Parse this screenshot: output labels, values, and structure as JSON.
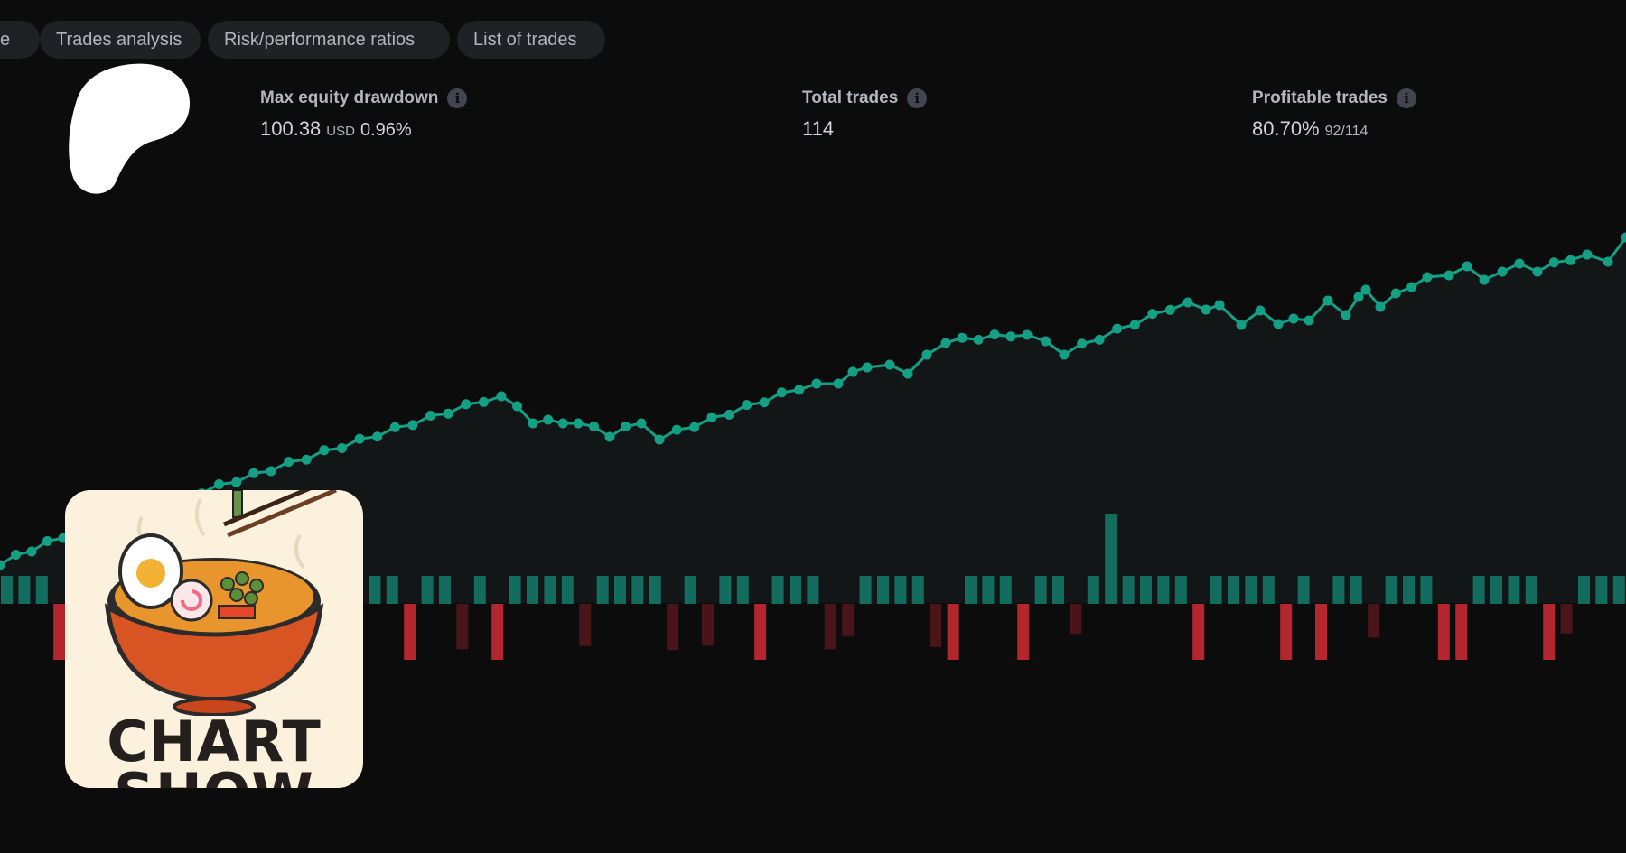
{
  "tabs": [
    {
      "label": "ce"
    },
    {
      "label": "Trades analysis"
    },
    {
      "label": "Risk/performance ratios"
    },
    {
      "label": "List of trades"
    }
  ],
  "stats": {
    "drawdown": {
      "label": "Max equity drawdown",
      "value": "100.38",
      "unit": "USD",
      "pct": "0.96%"
    },
    "total_trades": {
      "label": "Total trades",
      "value": "114"
    },
    "profitable": {
      "label": "Profitable trades",
      "value": "80.70%",
      "sub": "92/114"
    }
  },
  "info_icon": "i",
  "logo": {
    "icon": "blob-logo-icon",
    "card_title_1": "CHART",
    "card_title_2": "SHOW"
  },
  "colors": {
    "equity_line": "#14a085",
    "positive_bar": "#136d5f",
    "negative_bar_strong": "#b3262d",
    "negative_bar_weak": "#4a1518",
    "area_fill": "#131616",
    "background": "#0c0c0d"
  }
}
